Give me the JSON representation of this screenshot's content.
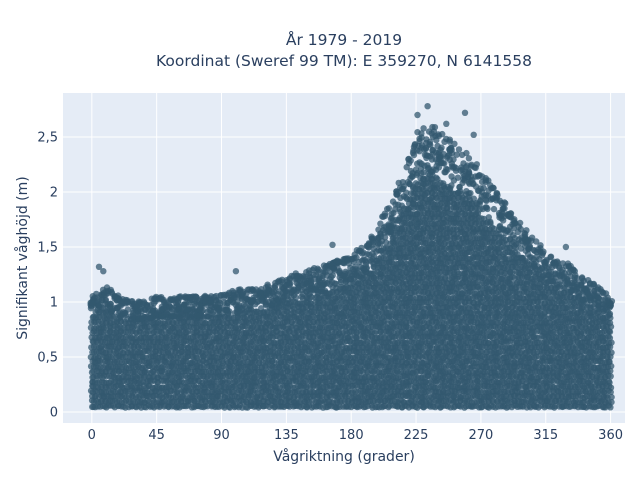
{
  "chart_data": {
    "type": "scatter",
    "title": "År 1979 - 2019",
    "subtitle": "Koordinat (Sweref 99 TM): E 359270, N 6141558",
    "xlabel": "Vågriktning (grader)",
    "ylabel": "Signifikant våghöjd (m)",
    "xlim": [
      -20,
      370
    ],
    "ylim": [
      -0.1,
      2.9
    ],
    "xticks": [
      0,
      45,
      90,
      135,
      180,
      225,
      270,
      315,
      360
    ],
    "xtick_labels": [
      "0",
      "45",
      "90",
      "135",
      "180",
      "225",
      "270",
      "315",
      "360"
    ],
    "yticks": [
      0,
      0.5,
      1,
      1.5,
      2,
      2.5
    ],
    "ytick_labels": [
      "0",
      "0,5",
      "1",
      "1,5",
      "2",
      "2,5"
    ],
    "grid": true,
    "legend": "none",
    "marker_color": "#33586f",
    "plot_bg": "#e5ecf6",
    "grid_color": "#ffffff",
    "upper_envelope": {
      "x": [
        0,
        10,
        20,
        30,
        45,
        60,
        75,
        90,
        105,
        120,
        135,
        150,
        165,
        180,
        195,
        205,
        215,
        225,
        235,
        245,
        255,
        265,
        275,
        285,
        295,
        305,
        315,
        330,
        345,
        360
      ],
      "y": [
        1.05,
        1.15,
        1.05,
        1.0,
        1.05,
        1.05,
        1.05,
        1.08,
        1.12,
        1.15,
        1.22,
        1.3,
        1.35,
        1.42,
        1.6,
        1.85,
        2.15,
        2.55,
        2.65,
        2.5,
        2.45,
        2.3,
        2.1,
        1.95,
        1.75,
        1.6,
        1.45,
        1.35,
        1.2,
        1.05
      ]
    },
    "notable_points": [
      {
        "x": 233,
        "y": 2.78
      },
      {
        "x": 226,
        "y": 2.7
      },
      {
        "x": 259,
        "y": 2.72
      },
      {
        "x": 246,
        "y": 2.62
      },
      {
        "x": 265,
        "y": 2.52
      },
      {
        "x": 5,
        "y": 1.32
      },
      {
        "x": 8,
        "y": 1.28
      },
      {
        "x": 100,
        "y": 1.28
      },
      {
        "x": 167,
        "y": 1.52
      },
      {
        "x": 329,
        "y": 1.5
      }
    ]
  }
}
